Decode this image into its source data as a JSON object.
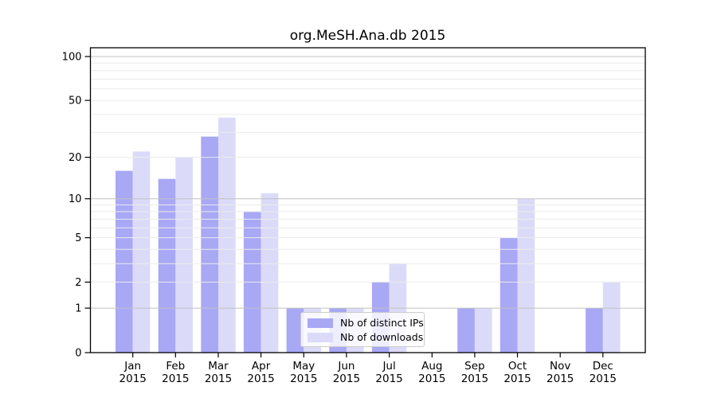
{
  "page": {
    "background": "#ffffff"
  },
  "chart_data": {
    "type": "bar",
    "title": "org.MeSH.Ana.db 2015",
    "categories": [
      "Jan 2015",
      "Feb 2015",
      "Mar 2015",
      "Apr 2015",
      "May 2015",
      "Jun 2015",
      "Jul 2015",
      "Aug 2015",
      "Sep 2015",
      "Oct 2015",
      "Nov 2015",
      "Dec 2015"
    ],
    "series": [
      {
        "name": "Nb of distinct IPs",
        "color": "#a8a8f5",
        "values": [
          16,
          14,
          28,
          8,
          1,
          1,
          2,
          0,
          1,
          5,
          0,
          1
        ]
      },
      {
        "name": "Nb of downloads",
        "color": "#dbdbf9",
        "values": [
          22,
          20,
          38,
          11,
          1,
          1,
          3,
          0,
          1,
          10,
          0,
          2
        ]
      }
    ],
    "xlabel": "",
    "ylabel": "",
    "yscale": "log1p",
    "ylim": [
      0,
      116
    ],
    "ytick_labels": [
      100,
      50,
      20,
      10,
      5,
      2,
      1,
      0
    ],
    "grid": true,
    "grid_minor_values": [
      2,
      3,
      4,
      5,
      6,
      7,
      8,
      9,
      20,
      30,
      40,
      50,
      60,
      70,
      80,
      90
    ],
    "grid_major_values": [
      1,
      10,
      100
    ],
    "legend_position": "lower-left-of-center",
    "colors": {
      "axis": "#000000",
      "grid_minor": "#ebebeb",
      "grid_major": "#c2c2c2",
      "background": "#ffffff"
    }
  }
}
